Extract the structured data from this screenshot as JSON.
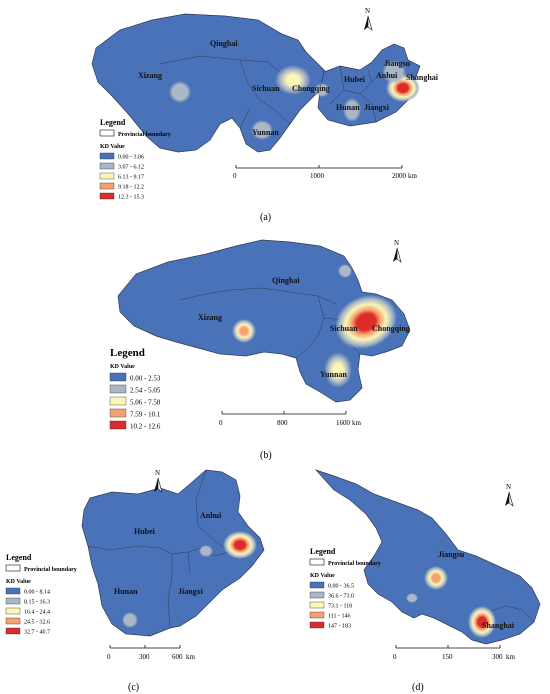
{
  "panels": [
    {
      "id": "a",
      "caption": "(a)",
      "regions": [
        "Qinghai",
        "Xizang",
        "Sichuan",
        "Chongqing",
        "Yunnan",
        "Hubei",
        "Anhui",
        "Jiangsu",
        "Shanghai",
        "Hunan",
        "Jiangxi"
      ],
      "legend": {
        "title": "Legend",
        "boundary_label": "Provincial boundary",
        "value_title": "KD Value",
        "classes": [
          "0.00 - 3.06",
          "3.07 - 6.12",
          "6.13 - 9.17",
          "9.18 - 12.2",
          "12.3 - 15.3"
        ]
      },
      "scale": {
        "ticks": [
          "0",
          "1000",
          "2000"
        ],
        "unit": "km"
      }
    },
    {
      "id": "b",
      "caption": "(b)",
      "regions": [
        "Qinghai",
        "Xizang",
        "Sichuan",
        "Chongqing",
        "Yunnan"
      ],
      "legend": {
        "title": "Legend",
        "value_title": "KD Value",
        "classes": [
          "0.00 - 2.53",
          "2.54 - 5.05",
          "5.06 - 7.58",
          "7.59 - 10.1",
          "10.2 - 12.6"
        ]
      },
      "scale": {
        "ticks": [
          "0",
          "800",
          "1600"
        ],
        "unit": "km"
      }
    },
    {
      "id": "c",
      "caption": "(c)",
      "regions": [
        "Hubei",
        "Anhui",
        "Hunan",
        "Jiangxi"
      ],
      "legend": {
        "title": "Legend",
        "boundary_label": "Provincial boundary",
        "value_title": "KD Value",
        "classes": [
          "0.00 - 8.14",
          "8.15 - 16.3",
          "16.4 - 24.4",
          "24.5 - 32.6",
          "32.7 - 40.7"
        ]
      },
      "scale": {
        "ticks": [
          "0",
          "300",
          "600"
        ],
        "unit": "km"
      }
    },
    {
      "id": "d",
      "caption": "(d)",
      "regions": [
        "Jiangsu",
        "Shanghai"
      ],
      "legend": {
        "title": "Legend",
        "boundary_label": "Provincial boundary",
        "value_title": "KD Value",
        "classes": [
          "0.00 - 36.5",
          "36.6 - 73.0",
          "73.1 - 110",
          "111 - 146",
          "147 - 183"
        ]
      },
      "scale": {
        "ticks": [
          "0",
          "150",
          "300"
        ],
        "unit": "km"
      }
    }
  ],
  "north_label": "N",
  "class_colors": [
    "#4a72b8",
    "#a9b7c6",
    "#fbf7b6",
    "#f5a070",
    "#dd2a2a"
  ]
}
